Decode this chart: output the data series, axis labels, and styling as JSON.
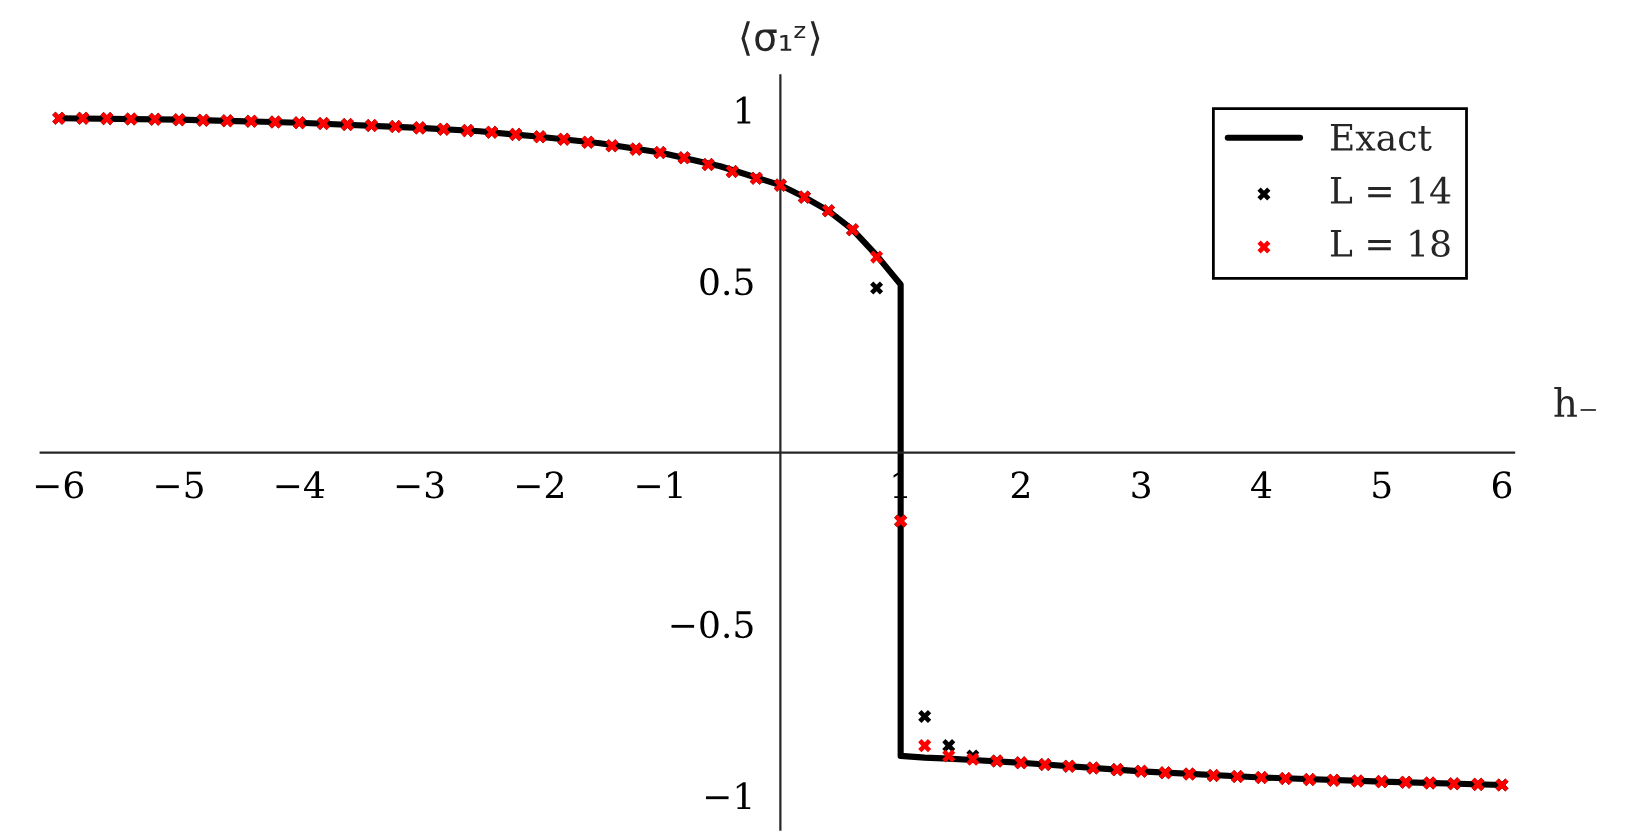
{
  "chart_data": {
    "type": "scatter",
    "xlabel": "h₋",
    "ylabel": "⟨σ₁ᶻ⟩",
    "series": [
      {
        "name": "Exact",
        "type": "line",
        "color": "#000000",
        "marker": "none",
        "x": [
          -6,
          -5,
          -4,
          -3,
          -2.5,
          -2,
          -1.5,
          -1,
          -0.5,
          0,
          0.2,
          0.4,
          0.6,
          0.8,
          1,
          1,
          1.2,
          1.4,
          1.6,
          2,
          3,
          4,
          5,
          6
        ],
        "values": [
          0.975,
          0.971,
          0.962,
          0.947,
          0.937,
          0.921,
          0.902,
          0.875,
          0.835,
          0.78,
          0.745,
          0.705,
          0.65,
          0.575,
          0.49,
          -0.885,
          -0.89,
          -0.893,
          -0.897,
          -0.905,
          -0.93,
          -0.948,
          -0.96,
          -0.97
        ]
      },
      {
        "name": "L = 14",
        "type": "scatter",
        "color": "#000000",
        "marker": "cross",
        "x": [
          -6,
          -5.8,
          -5.6,
          -5.4,
          -5.2,
          -5,
          -4.8,
          -4.6,
          -4.4,
          -4.2,
          -4,
          -3.8,
          -3.6,
          -3.4,
          -3.2,
          -3,
          -2.8,
          -2.6,
          -2.4,
          -2.2,
          -2,
          -1.8,
          -1.6,
          -1.4,
          -1.2,
          -1,
          -0.8,
          -0.6,
          -0.4,
          -0.2,
          0,
          0.2,
          0.4,
          0.6,
          0.8,
          1,
          1.2,
          1.4,
          1.6,
          1.8,
          2,
          2.2,
          2.4,
          2.6,
          2.8,
          3,
          3.2,
          3.4,
          3.6,
          3.8,
          4,
          4.2,
          4.4,
          4.6,
          4.8,
          5,
          5.2,
          5.4,
          5.6,
          5.8,
          6
        ],
        "values": [
          0.975,
          0.975,
          0.974,
          0.973,
          0.972,
          0.971,
          0.969,
          0.968,
          0.966,
          0.964,
          0.962,
          0.96,
          0.957,
          0.954,
          0.951,
          0.947,
          0.943,
          0.939,
          0.934,
          0.928,
          0.921,
          0.914,
          0.905,
          0.895,
          0.885,
          0.875,
          0.86,
          0.84,
          0.82,
          0.8,
          0.78,
          0.745,
          0.705,
          0.65,
          0.48,
          -0.2,
          -0.77,
          -0.855,
          -0.885,
          -0.9,
          -0.905,
          -0.91,
          -0.915,
          -0.92,
          -0.925,
          -0.93,
          -0.934,
          -0.938,
          -0.942,
          -0.945,
          -0.948,
          -0.951,
          -0.954,
          -0.956,
          -0.958,
          -0.96,
          -0.962,
          -0.964,
          -0.966,
          -0.968,
          -0.97
        ]
      },
      {
        "name": "L = 18",
        "type": "scatter",
        "color": "#ff0000",
        "marker": "cross",
        "x": [
          -6,
          -5.8,
          -5.6,
          -5.4,
          -5.2,
          -5,
          -4.8,
          -4.6,
          -4.4,
          -4.2,
          -4,
          -3.8,
          -3.6,
          -3.4,
          -3.2,
          -3,
          -2.8,
          -2.6,
          -2.4,
          -2.2,
          -2,
          -1.8,
          -1.6,
          -1.4,
          -1.2,
          -1,
          -0.8,
          -0.6,
          -0.4,
          -0.2,
          0,
          0.2,
          0.4,
          0.6,
          0.8,
          1,
          1.2,
          1.4,
          1.6,
          1.8,
          2,
          2.2,
          2.4,
          2.6,
          2.8,
          3,
          3.2,
          3.4,
          3.6,
          3.8,
          4,
          4.2,
          4.4,
          4.6,
          4.8,
          5,
          5.2,
          5.4,
          5.6,
          5.8,
          6
        ],
        "values": [
          0.975,
          0.975,
          0.974,
          0.973,
          0.972,
          0.971,
          0.969,
          0.968,
          0.966,
          0.964,
          0.962,
          0.96,
          0.957,
          0.954,
          0.951,
          0.947,
          0.943,
          0.939,
          0.934,
          0.928,
          0.921,
          0.914,
          0.905,
          0.895,
          0.885,
          0.875,
          0.86,
          0.84,
          0.82,
          0.8,
          0.78,
          0.745,
          0.705,
          0.65,
          0.57,
          -0.2,
          -0.855,
          -0.885,
          -0.895,
          -0.9,
          -0.905,
          -0.91,
          -0.915,
          -0.92,
          -0.925,
          -0.93,
          -0.934,
          -0.938,
          -0.942,
          -0.945,
          -0.948,
          -0.951,
          -0.954,
          -0.956,
          -0.958,
          -0.96,
          -0.962,
          -0.964,
          -0.966,
          -0.968,
          -0.97
        ]
      }
    ],
    "xlim": [
      -6.15,
      6.1
    ],
    "ylim": [
      -1.1,
      1.1
    ],
    "xticks": [
      -6,
      -5,
      -4,
      -3,
      -2,
      -1,
      1,
      2,
      3,
      4,
      5,
      6
    ],
    "yticks": [
      -1,
      -0.5,
      0.5,
      1
    ],
    "grid": false,
    "legend": "top right"
  }
}
